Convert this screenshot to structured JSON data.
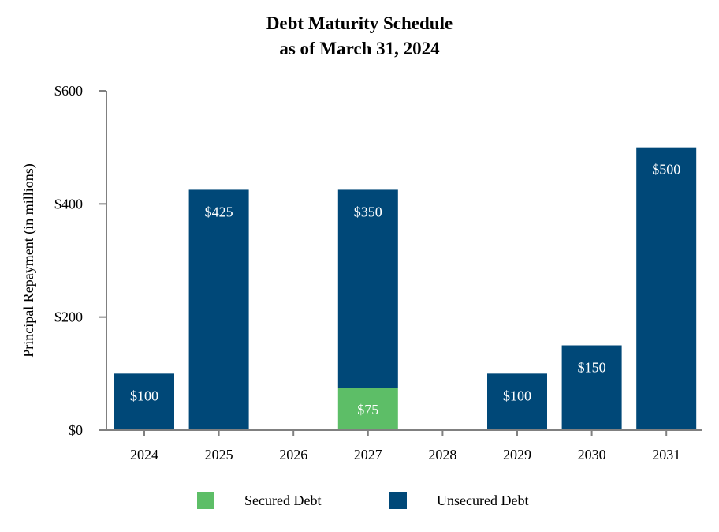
{
  "chart_data": {
    "type": "bar",
    "stacked": true,
    "title": [
      "Debt Maturity Schedule",
      "as of March 31, 2024"
    ],
    "xlabel": "",
    "ylabel": "Principal Repayment (in millions)",
    "ylim": [
      0,
      600
    ],
    "yticks": [
      0,
      200,
      400,
      600
    ],
    "ytick_labels": [
      "$0",
      "$200",
      "$400",
      "$600"
    ],
    "grid": false,
    "legend_position": "bottom",
    "categories": [
      "2024",
      "2025",
      "2026",
      "2027",
      "2028",
      "2029",
      "2030",
      "2031"
    ],
    "series": [
      {
        "name": "Secured Debt",
        "color": "#5DBE67",
        "values": [
          0,
          0,
          0,
          75,
          0,
          0,
          0,
          0
        ],
        "labels": [
          "",
          "",
          "",
          "$75",
          "",
          "",
          "",
          ""
        ]
      },
      {
        "name": "Unsecured Debt",
        "color": "#004878",
        "values": [
          100,
          425,
          0,
          350,
          0,
          100,
          150,
          500
        ],
        "labels": [
          "$100",
          "$425",
          "",
          "$350",
          "",
          "$100",
          "$150",
          "$500"
        ]
      }
    ]
  }
}
